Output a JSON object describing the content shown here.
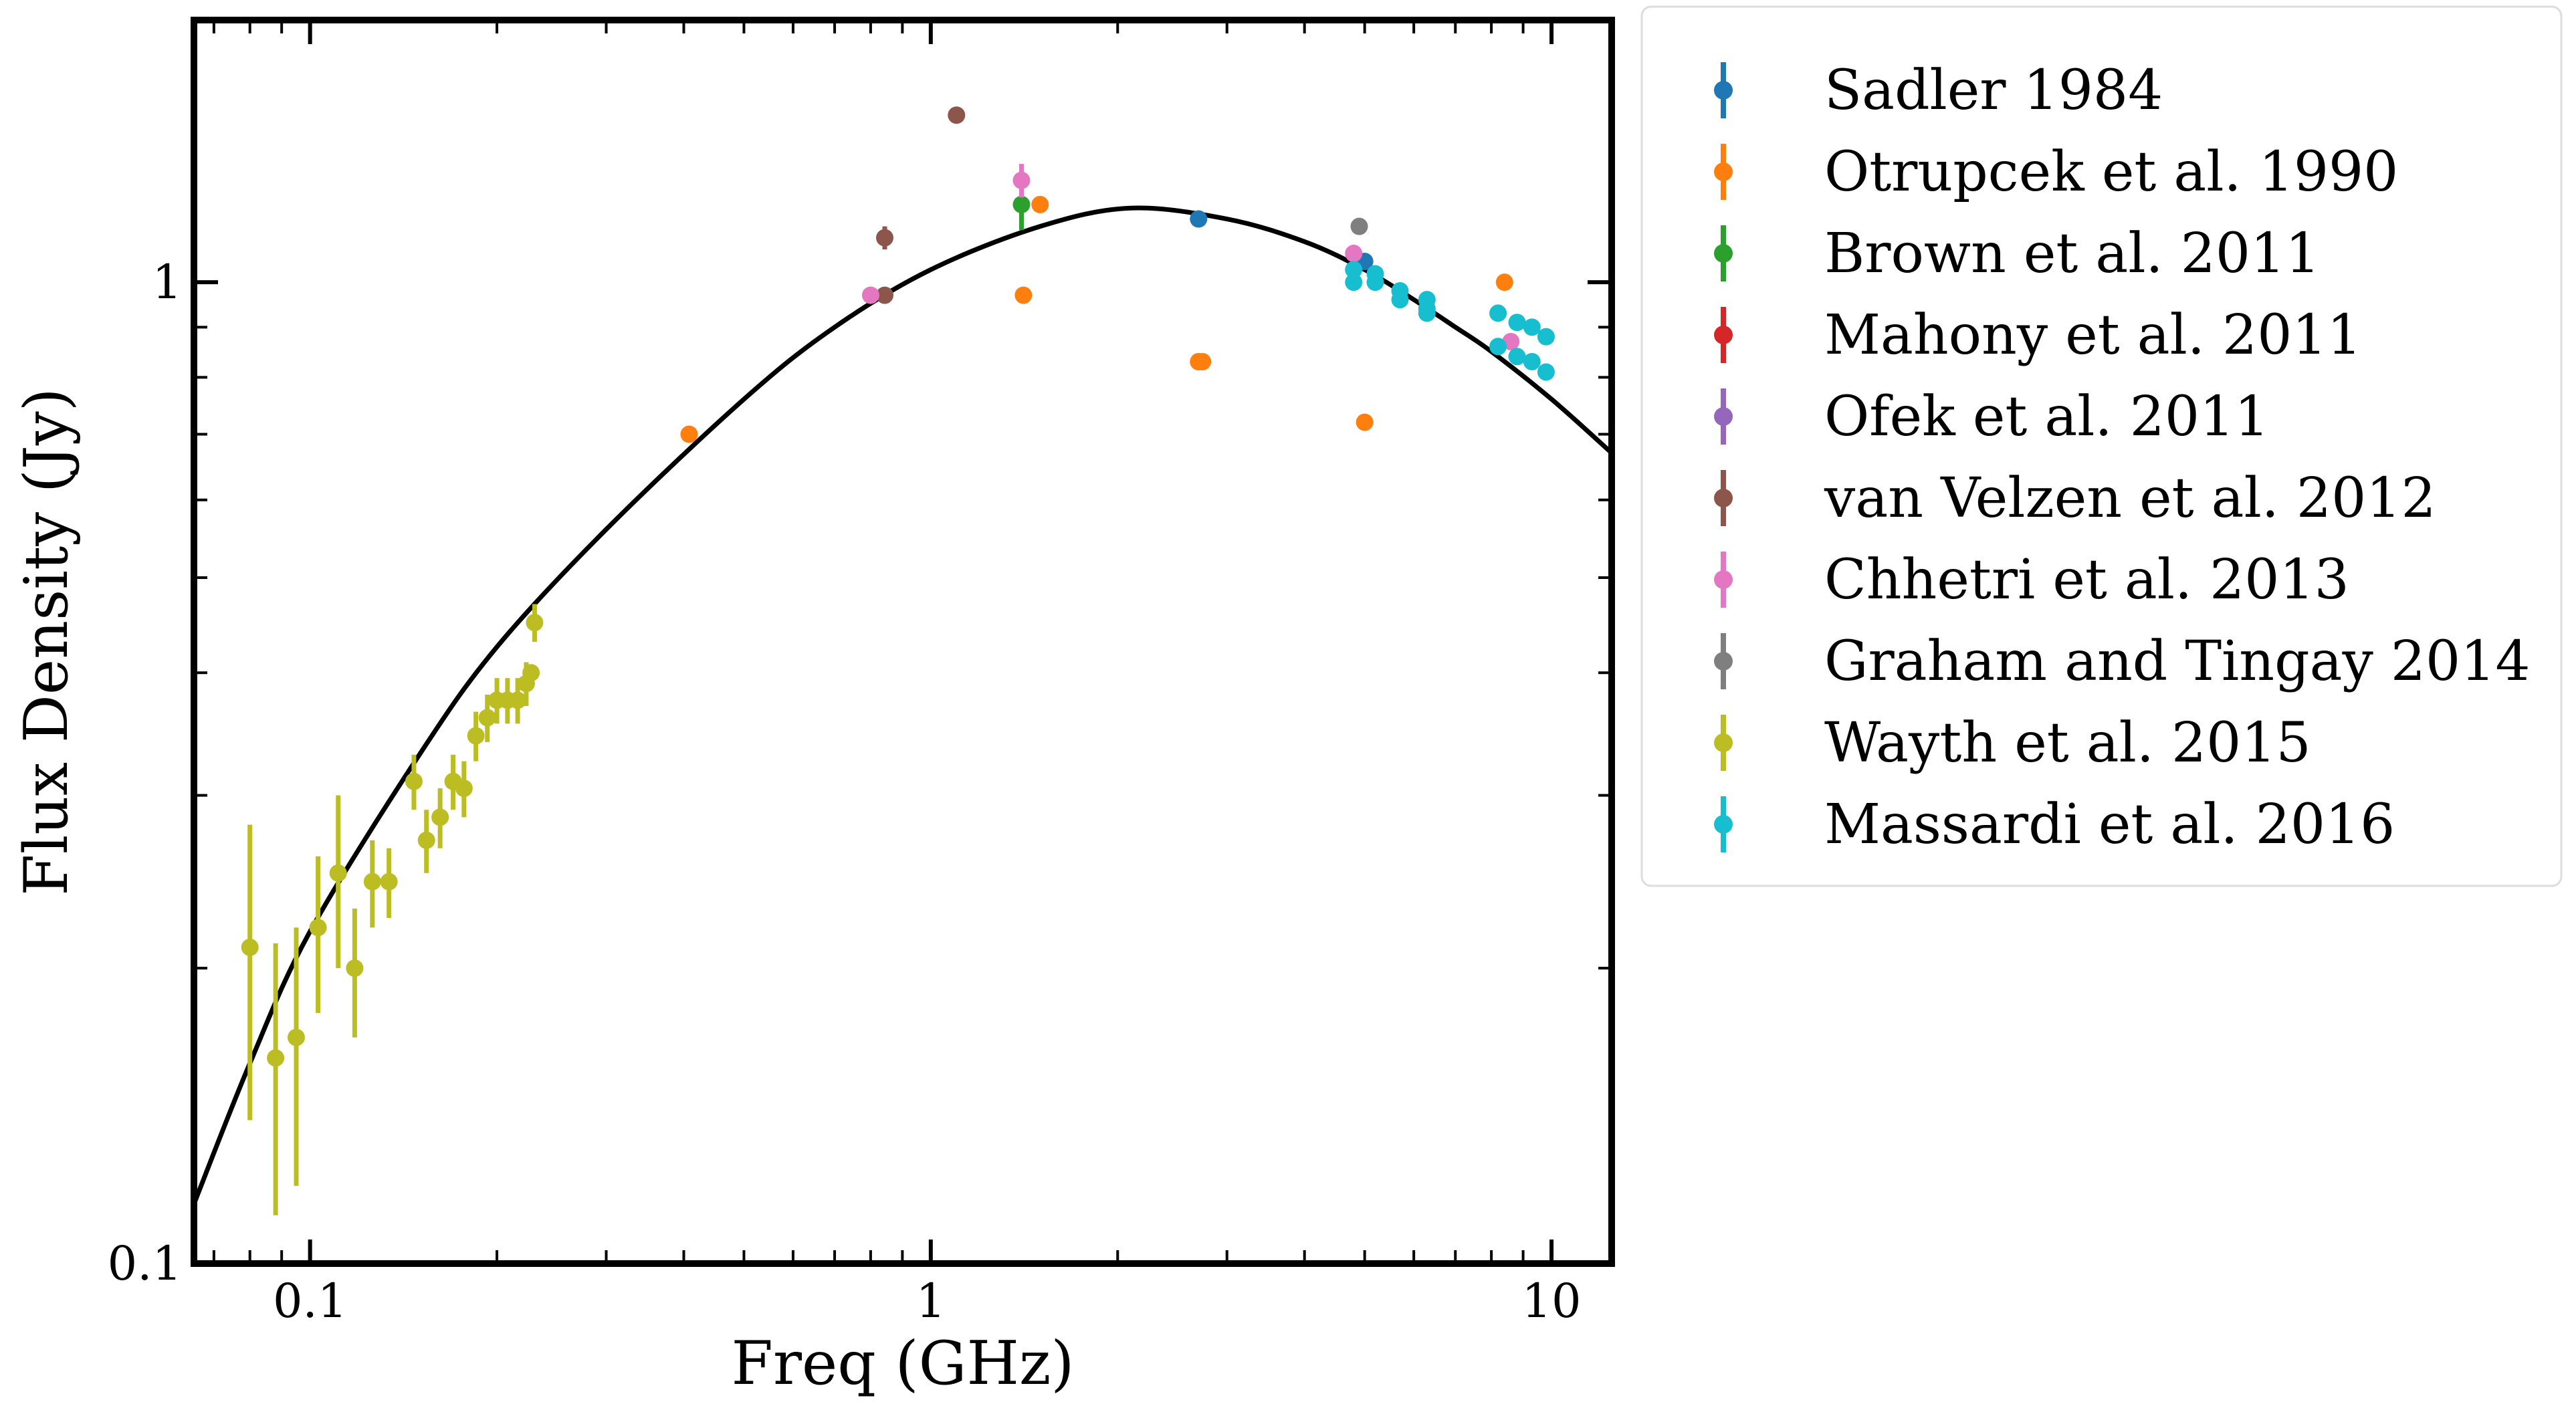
{
  "chart_data": {
    "type": "scatter",
    "title": "",
    "xlabel": "Freq (GHz)",
    "ylabel": "Flux Density (Jy)",
    "xscale": "log",
    "yscale": "log",
    "xlim": [
      0.065,
      12.5
    ],
    "ylim": [
      0.1,
      1.85
    ],
    "x_ticks": [
      {
        "value": 0.1,
        "label": "0.1"
      },
      {
        "value": 1,
        "label": "1"
      },
      {
        "value": 10,
        "label": "10"
      }
    ],
    "y_ticks": [
      {
        "value": 0.1,
        "label": "0.1"
      },
      {
        "value": 1,
        "label": "1"
      }
    ],
    "grid": false,
    "legend_position": "outside-right",
    "fit_curve": {
      "name": "",
      "color": "#000000",
      "points": [
        [
          0.065,
          0.115
        ],
        [
          0.08,
          0.16
        ],
        [
          0.1,
          0.218
        ],
        [
          0.15,
          0.33
        ],
        [
          0.2,
          0.425
        ],
        [
          0.3,
          0.56
        ],
        [
          0.5,
          0.76
        ],
        [
          0.7,
          0.9
        ],
        [
          1.0,
          1.03
        ],
        [
          1.5,
          1.14
        ],
        [
          2.1,
          1.19
        ],
        [
          3.0,
          1.16
        ],
        [
          4.0,
          1.1
        ],
        [
          5.0,
          1.03
        ],
        [
          6.0,
          0.96
        ],
        [
          7.0,
          0.9
        ],
        [
          8.0,
          0.85
        ],
        [
          10.0,
          0.76
        ],
        [
          12.5,
          0.67
        ]
      ]
    },
    "series": [
      {
        "name": "Sadler 1984",
        "color": "#1f77b4",
        "points": [
          {
            "x": 2.7,
            "y": 1.16,
            "err": 0.01
          },
          {
            "x": 5.0,
            "y": 1.05,
            "err": 0.02
          }
        ]
      },
      {
        "name": "Otrupcek et al. 1990",
        "color": "#ff7f0e",
        "points": [
          {
            "x": 0.408,
            "y": 0.7
          },
          {
            "x": 1.41,
            "y": 0.97
          },
          {
            "x": 1.5,
            "y": 1.2
          },
          {
            "x": 2.7,
            "y": 0.83
          },
          {
            "x": 2.74,
            "y": 0.83
          },
          {
            "x": 5.0,
            "y": 0.72
          },
          {
            "x": 8.4,
            "y": 1.0
          }
        ]
      },
      {
        "name": "Brown et al. 2011",
        "color": "#2ca02c",
        "points": [
          {
            "x": 1.4,
            "y": 1.2,
            "err": 0.07
          }
        ]
      },
      {
        "name": "Mahony et al. 2011",
        "color": "#d62728",
        "points": []
      },
      {
        "name": "Ofek et al. 2011",
        "color": "#9467bd",
        "points": []
      },
      {
        "name": "van Velzen et al. 2012",
        "color": "#8c564b",
        "points": [
          {
            "x": 0.843,
            "y": 1.11,
            "err": 0.03
          },
          {
            "x": 0.843,
            "y": 0.97
          },
          {
            "x": 1.1,
            "y": 1.48
          }
        ]
      },
      {
        "name": "Chhetri et al. 2013",
        "color": "#e377c2",
        "points": [
          {
            "x": 0.8,
            "y": 0.97
          },
          {
            "x": 1.4,
            "y": 1.27,
            "err": 0.05
          },
          {
            "x": 4.8,
            "y": 1.07
          },
          {
            "x": 8.6,
            "y": 0.87
          }
        ]
      },
      {
        "name": "Graham and Tingay 2014",
        "color": "#7f7f7f",
        "points": [
          {
            "x": 4.9,
            "y": 1.14
          }
        ]
      },
      {
        "name": "Wayth et al. 2015",
        "color": "#bcbd22",
        "points": [
          {
            "x": 0.08,
            "y": 0.21,
            "err": 0.07
          },
          {
            "x": 0.088,
            "y": 0.162,
            "err": 0.05
          },
          {
            "x": 0.095,
            "y": 0.17,
            "err": 0.05
          },
          {
            "x": 0.103,
            "y": 0.22,
            "err": 0.04
          },
          {
            "x": 0.111,
            "y": 0.25,
            "err": 0.05
          },
          {
            "x": 0.118,
            "y": 0.2,
            "err": 0.03
          },
          {
            "x": 0.126,
            "y": 0.245,
            "err": 0.025
          },
          {
            "x": 0.134,
            "y": 0.245,
            "err": 0.02
          },
          {
            "x": 0.147,
            "y": 0.31,
            "err": 0.02
          },
          {
            "x": 0.154,
            "y": 0.27,
            "err": 0.02
          },
          {
            "x": 0.162,
            "y": 0.285,
            "err": 0.02
          },
          {
            "x": 0.17,
            "y": 0.31,
            "err": 0.02
          },
          {
            "x": 0.177,
            "y": 0.305,
            "err": 0.02
          },
          {
            "x": 0.185,
            "y": 0.345,
            "err": 0.02
          },
          {
            "x": 0.193,
            "y": 0.36,
            "err": 0.02
          },
          {
            "x": 0.2,
            "y": 0.375,
            "err": 0.02
          },
          {
            "x": 0.208,
            "y": 0.375,
            "err": 0.02
          },
          {
            "x": 0.216,
            "y": 0.375,
            "err": 0.02
          },
          {
            "x": 0.223,
            "y": 0.39,
            "err": 0.02
          },
          {
            "x": 0.227,
            "y": 0.4
          },
          {
            "x": 0.23,
            "y": 0.45,
            "err": 0.02
          }
        ]
      },
      {
        "name": "Massardi et al. 2016",
        "color": "#17becf",
        "points": [
          {
            "x": 4.8,
            "y": 1.0
          },
          {
            "x": 4.8,
            "y": 1.03
          },
          {
            "x": 5.2,
            "y": 1.0
          },
          {
            "x": 5.2,
            "y": 1.02
          },
          {
            "x": 5.7,
            "y": 0.98
          },
          {
            "x": 5.7,
            "y": 0.96
          },
          {
            "x": 6.3,
            "y": 0.96
          },
          {
            "x": 6.3,
            "y": 0.93
          },
          {
            "x": 6.3,
            "y": 0.94
          },
          {
            "x": 8.2,
            "y": 0.93
          },
          {
            "x": 8.2,
            "y": 0.86
          },
          {
            "x": 8.8,
            "y": 0.91
          },
          {
            "x": 8.8,
            "y": 0.84
          },
          {
            "x": 9.3,
            "y": 0.9
          },
          {
            "x": 9.3,
            "y": 0.83
          },
          {
            "x": 9.8,
            "y": 0.88
          },
          {
            "x": 9.8,
            "y": 0.81
          }
        ]
      }
    ]
  }
}
